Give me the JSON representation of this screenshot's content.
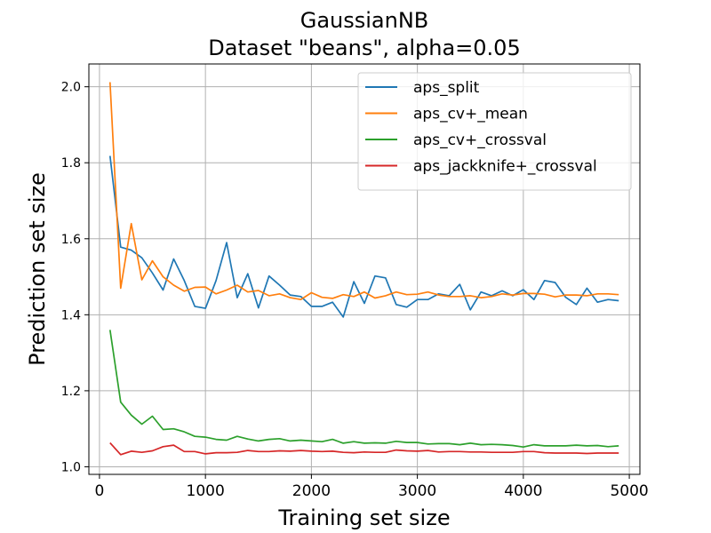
{
  "chart_data": {
    "type": "line",
    "title_line1": "GaussianNB",
    "title_line2": "Dataset \"beans\", alpha=0.05",
    "xlabel": "Training set size",
    "ylabel": "Prediction set size",
    "xlim": [
      -100,
      5100
    ],
    "ylim": [
      0.98,
      2.06
    ],
    "xticks": [
      0,
      1000,
      2000,
      3000,
      4000,
      5000
    ],
    "yticks": [
      1.0,
      1.2,
      1.4,
      1.6,
      1.8,
      2.0
    ],
    "ytick_labels": [
      "1.0",
      "1.2",
      "1.4",
      "1.6",
      "1.8",
      "2.0"
    ],
    "grid": true,
    "legend_position": "top-right",
    "x": [
      100,
      200,
      300,
      400,
      500,
      600,
      700,
      800,
      900,
      1000,
      1100,
      1200,
      1300,
      1400,
      1500,
      1600,
      1700,
      1800,
      1900,
      2000,
      2100,
      2200,
      2300,
      2400,
      2500,
      2600,
      2700,
      2800,
      2900,
      3000,
      3100,
      3200,
      3300,
      3400,
      3500,
      3600,
      3700,
      3800,
      3900,
      4000,
      4100,
      4200,
      4300,
      4400,
      4500,
      4600,
      4700,
      4800,
      4900
    ],
    "series": [
      {
        "name": "aps_split",
        "color": "#1f77b4",
        "values": [
          1.818,
          1.578,
          1.57,
          1.55,
          1.51,
          1.465,
          1.547,
          1.49,
          1.422,
          1.417,
          1.49,
          1.59,
          1.445,
          1.508,
          1.418,
          1.502,
          1.478,
          1.452,
          1.448,
          1.422,
          1.422,
          1.433,
          1.394,
          1.487,
          1.43,
          1.502,
          1.497,
          1.427,
          1.42,
          1.44,
          1.44,
          1.455,
          1.45,
          1.48,
          1.413,
          1.46,
          1.45,
          1.463,
          1.45,
          1.466,
          1.44,
          1.49,
          1.485,
          1.446,
          1.427,
          1.47,
          1.433,
          1.44,
          1.437
        ]
      },
      {
        "name": "aps_cv+_mean",
        "color": "#ff7f0e",
        "values": [
          2.012,
          1.47,
          1.64,
          1.492,
          1.542,
          1.5,
          1.478,
          1.462,
          1.472,
          1.473,
          1.455,
          1.465,
          1.478,
          1.46,
          1.464,
          1.45,
          1.455,
          1.445,
          1.44,
          1.458,
          1.446,
          1.443,
          1.453,
          1.448,
          1.46,
          1.444,
          1.45,
          1.46,
          1.453,
          1.454,
          1.46,
          1.452,
          1.448,
          1.448,
          1.45,
          1.445,
          1.448,
          1.455,
          1.452,
          1.456,
          1.456,
          1.454,
          1.447,
          1.452,
          1.452,
          1.45,
          1.455,
          1.455,
          1.453
        ]
      },
      {
        "name": "aps_cv+_crossval",
        "color": "#2ca02c",
        "values": [
          1.36,
          1.17,
          1.136,
          1.112,
          1.133,
          1.098,
          1.1,
          1.092,
          1.08,
          1.078,
          1.072,
          1.07,
          1.08,
          1.073,
          1.068,
          1.072,
          1.074,
          1.068,
          1.07,
          1.068,
          1.066,
          1.072,
          1.062,
          1.066,
          1.062,
          1.063,
          1.062,
          1.067,
          1.064,
          1.064,
          1.06,
          1.061,
          1.061,
          1.058,
          1.062,
          1.058,
          1.059,
          1.058,
          1.056,
          1.052,
          1.058,
          1.055,
          1.055,
          1.055,
          1.057,
          1.055,
          1.056,
          1.053,
          1.055
        ]
      },
      {
        "name": "aps_jackknife+_crossval",
        "color": "#d62728",
        "values": [
          1.063,
          1.032,
          1.041,
          1.038,
          1.042,
          1.053,
          1.057,
          1.04,
          1.04,
          1.034,
          1.037,
          1.037,
          1.038,
          1.043,
          1.04,
          1.04,
          1.042,
          1.041,
          1.043,
          1.041,
          1.04,
          1.041,
          1.038,
          1.037,
          1.039,
          1.038,
          1.038,
          1.044,
          1.042,
          1.041,
          1.043,
          1.039,
          1.04,
          1.04,
          1.039,
          1.039,
          1.038,
          1.038,
          1.038,
          1.04,
          1.04,
          1.037,
          1.036,
          1.036,
          1.036,
          1.035,
          1.036,
          1.036,
          1.036
        ]
      }
    ]
  }
}
